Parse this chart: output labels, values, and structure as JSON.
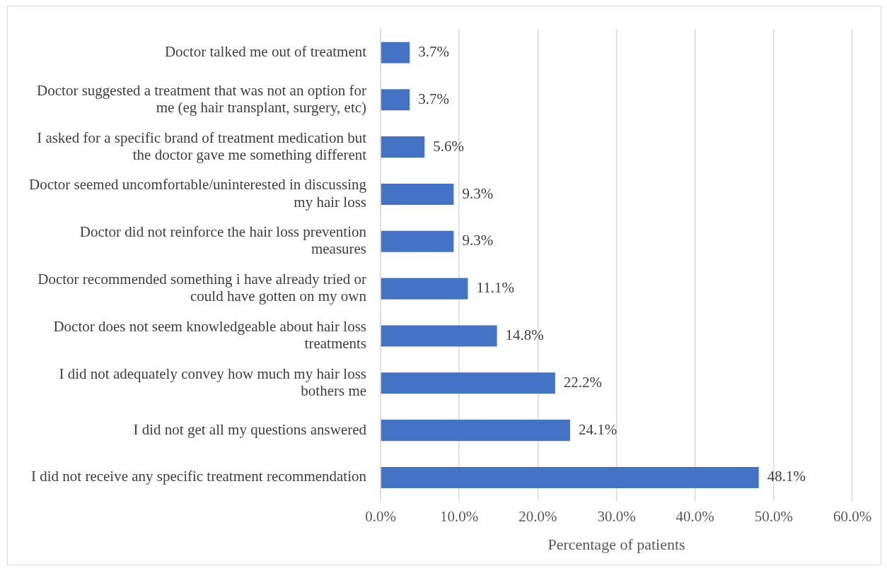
{
  "chart_data": {
    "type": "bar",
    "orientation": "horizontal",
    "xlabel": "Percentage of patients",
    "categories": [
      "Doctor talked me out of treatment",
      "Doctor suggested a treatment that was not an option for me (eg hair transplant, surgery, etc)",
      "I asked for a specific brand of treatment medication but the doctor gave me something different",
      "Doctor seemed uncomfortable/uninterested in discussing my hair loss",
      "Doctor did not reinforce the hair loss prevention measures",
      "Doctor recommended something i have already tried or could have gotten on my own",
      "Doctor does not seem knowledgeable about hair loss treatments",
      "I did not adequately convey how much my hair loss bothers me",
      "I did not get all my questions answered",
      "I did not receive any specific treatment recommendation"
    ],
    "values": [
      3.7,
      3.7,
      5.6,
      9.3,
      9.3,
      11.1,
      14.8,
      22.2,
      24.1,
      48.1
    ],
    "value_labels": [
      "3.7%",
      "3.7%",
      "5.6%",
      "9.3%",
      "9.3%",
      "11.1%",
      "14.8%",
      "22.2%",
      "24.1%",
      "48.1%"
    ],
    "color": "#4472c4",
    "xlim": [
      0,
      60
    ],
    "xticks": [
      {
        "value": 0,
        "label": "0.0%"
      },
      {
        "value": 10,
        "label": "10.0%"
      },
      {
        "value": 20,
        "label": "20.0%"
      },
      {
        "value": 30,
        "label": "30.0%"
      },
      {
        "value": 40,
        "label": "40.0%"
      },
      {
        "value": 50,
        "label": "50.0%"
      },
      {
        "value": 60,
        "label": "60.0%"
      }
    ],
    "grid": "x",
    "legend": false
  }
}
